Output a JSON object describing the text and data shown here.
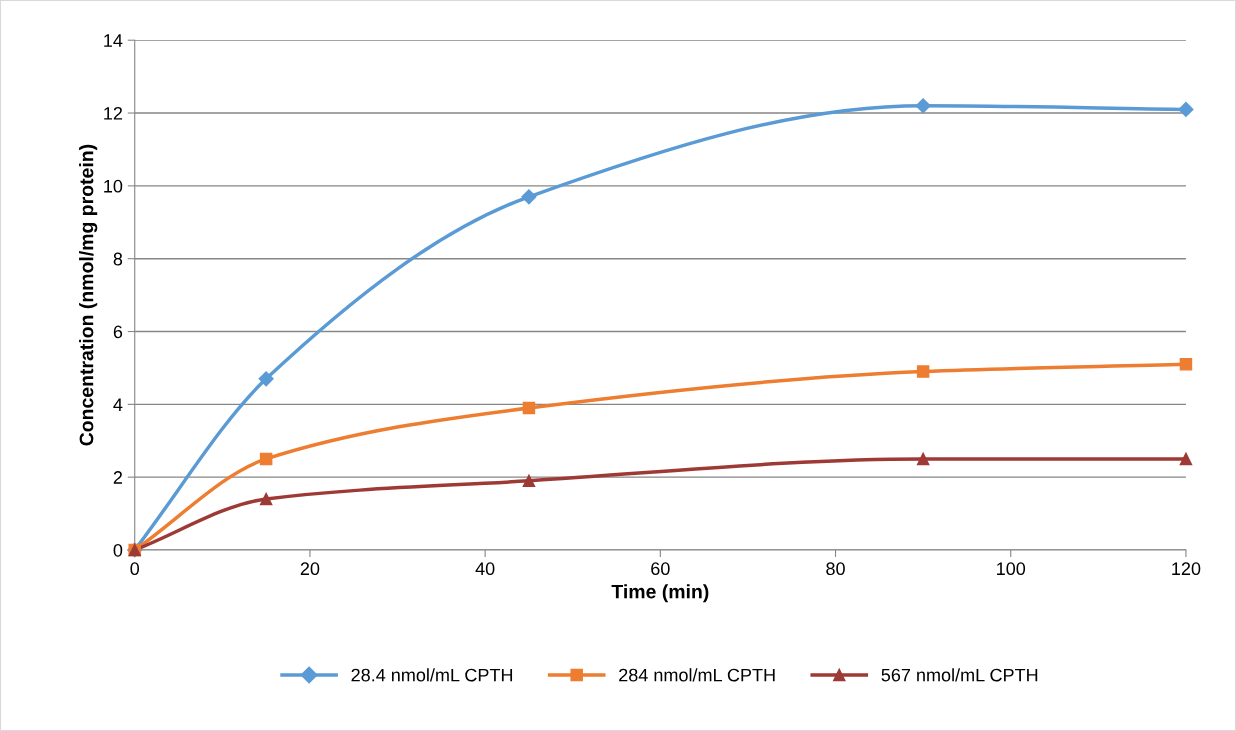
{
  "chart_data": {
    "type": "line",
    "xlabel": "Time (min)",
    "ylabel": "Concentration (nmol/mg protein)",
    "x": [
      0,
      15,
      45,
      90,
      120
    ],
    "series": [
      {
        "name": "28.4 nmol/mL CPTH",
        "color": "#5b9bd5",
        "marker": "diamond",
        "values": [
          0,
          4.7,
          9.7,
          12.2,
          12.1
        ]
      },
      {
        "name": "284 nmol/mL CPTH",
        "color": "#ed7d31",
        "marker": "square",
        "values": [
          0,
          2.5,
          3.9,
          4.9,
          5.1
        ]
      },
      {
        "name": "567 nmol/mL CPTH",
        "color": "#9e3a36",
        "marker": "triangle",
        "values": [
          0,
          1.4,
          1.9,
          2.5,
          2.5
        ]
      }
    ],
    "xlim": [
      0,
      120
    ],
    "xticks": [
      0,
      20,
      40,
      60,
      80,
      100,
      120
    ],
    "ylim": [
      0,
      14
    ],
    "yticks": [
      0,
      2,
      4,
      6,
      8,
      10,
      12,
      14
    ],
    "grid": "y",
    "legend": "bottom",
    "line_style": "solid"
  }
}
